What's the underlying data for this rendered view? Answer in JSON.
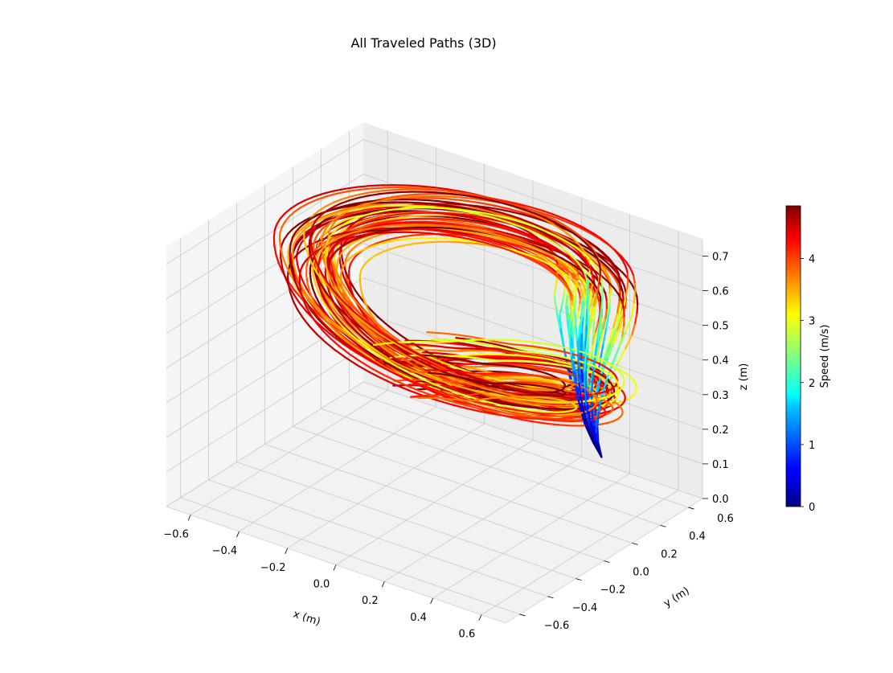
{
  "chart_data": {
    "type": "line",
    "projection": "3d",
    "title": "All Traveled Paths (3D)",
    "xlabel": "x (m)",
    "ylabel": "y (m)",
    "zlabel": "z (m)",
    "xlim": [
      -0.7,
      0.7
    ],
    "ylim": [
      -0.7,
      0.7
    ],
    "zlim": [
      0.0,
      0.75
    ],
    "xticks": [
      -0.6,
      -0.4,
      -0.2,
      0.0,
      0.2,
      0.4,
      0.6
    ],
    "xtick_labels": [
      "−0.6",
      "−0.4",
      "−0.2",
      "0.0",
      "0.2",
      "0.4",
      "0.6"
    ],
    "yticks": [
      -0.6,
      -0.4,
      -0.2,
      0.0,
      0.2,
      0.4,
      0.6
    ],
    "ytick_labels": [
      "−0.6",
      "−0.4",
      "−0.2",
      "0.0",
      "0.2",
      "0.4",
      "0.6"
    ],
    "zticks": [
      0.0,
      0.1,
      0.2,
      0.3,
      0.4,
      0.5,
      0.6,
      0.7
    ],
    "ztick_labels": [
      "0.0",
      "0.1",
      "0.2",
      "0.3",
      "0.4",
      "0.5",
      "0.6",
      "0.7"
    ],
    "grid": true,
    "path_count": 45,
    "path_shape": {
      "start": {
        "x": 0.62,
        "y": 0.12,
        "z": 0.25
      },
      "loop_center": {
        "x": 0.0,
        "y": 0.15
      },
      "loop_radius": 0.5,
      "end_z_range": [
        0.12,
        0.25
      ],
      "peak_height_z": 0.62
    },
    "colorbar": {
      "label": "Speed (m/s)",
      "min": 0,
      "max": 4.85,
      "ticks": [
        0,
        1,
        2,
        3,
        4
      ],
      "tick_labels": [
        "0",
        "1",
        "2",
        "3",
        "4"
      ],
      "colormap": "jet",
      "colors": [
        "#000080",
        "#0000ff",
        "#00ffff",
        "#ffff00",
        "#ff0000",
        "#800000"
      ]
    }
  }
}
